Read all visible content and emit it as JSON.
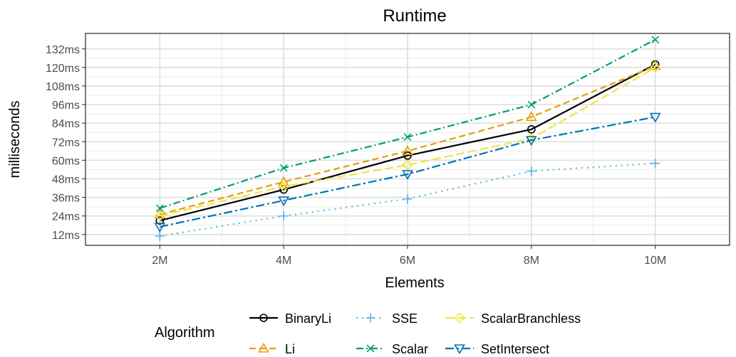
{
  "chart_data": {
    "type": "line",
    "title": "Runtime",
    "xlabel": "Elements",
    "ylabel": "milliseconds",
    "x": [
      2,
      4,
      6,
      8,
      10
    ],
    "x_tick_labels": [
      "2M",
      "4M",
      "6M",
      "8M",
      "10M"
    ],
    "xlim": [
      0.8,
      11.2
    ],
    "y_ticks": [
      12,
      24,
      36,
      48,
      60,
      72,
      84,
      96,
      108,
      120,
      132
    ],
    "y_tick_labels": [
      "12ms",
      "24ms",
      "36ms",
      "48ms",
      "60ms",
      "72ms",
      "84ms",
      "96ms",
      "108ms",
      "120ms",
      "132ms"
    ],
    "ylim": [
      5,
      142
    ],
    "grid": true,
    "legend_position": "bottom",
    "legend_title": "Algorithm",
    "series": [
      {
        "name": "BinaryLi",
        "values": [
          21,
          41,
          63,
          80,
          122
        ],
        "color": "#000000",
        "dash": "",
        "marker": "circle"
      },
      {
        "name": "Li",
        "values": [
          25,
          46,
          66,
          88,
          121
        ],
        "color": "#E69F00",
        "dash": "9,5",
        "marker": "triangle-up"
      },
      {
        "name": "SSE",
        "values": [
          11,
          24,
          35,
          53,
          58
        ],
        "color": "#56B4E9",
        "dash": "2,6",
        "marker": "plus"
      },
      {
        "name": "Scalar",
        "values": [
          29,
          55,
          75,
          96,
          138
        ],
        "color": "#009E73",
        "dash": "10,4,2,4",
        "marker": "x"
      },
      {
        "name": "ScalarBranchless",
        "values": [
          24,
          43,
          57,
          74,
          120
        ],
        "color": "#F0E442",
        "dash": "12,5",
        "marker": "diamond"
      },
      {
        "name": "SetIntersect",
        "values": [
          17,
          34,
          51,
          73,
          88
        ],
        "color": "#0072B2",
        "dash": "12,4,3,4",
        "marker": "triangle-down"
      }
    ],
    "legend_layout": [
      [
        "BinaryLi",
        "SSE",
        "ScalarBranchless"
      ],
      [
        "Li",
        "Scalar",
        "SetIntersect"
      ]
    ]
  }
}
